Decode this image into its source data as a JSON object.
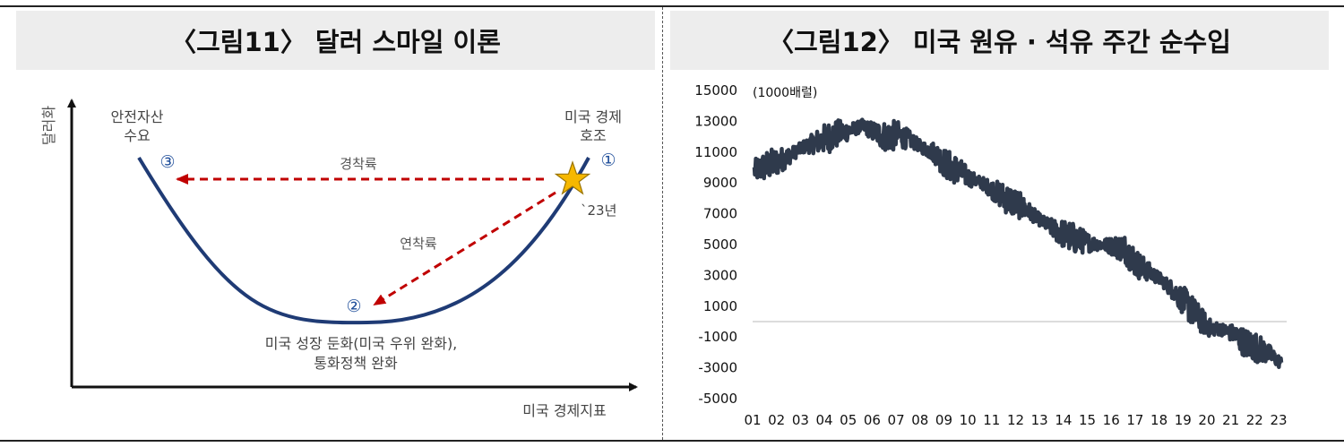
{
  "figure11": {
    "title": "〈그림11〉 달러 스마일 이론",
    "y_axis_label": "달러화",
    "x_axis_label": "미국 경제지표",
    "points": {
      "safe_haven": {
        "num": "③",
        "label_line1": "안전자산",
        "label_line2": "수요"
      },
      "slowdown": {
        "num": "②",
        "label_line1": "미국 성장 둔화(미국 우위 완화),",
        "label_line2": "통화정책 완화"
      },
      "boom": {
        "num": "①",
        "label_line1": "미국 경제",
        "label_line2": "호조"
      }
    },
    "arrow_hard": "경착륙",
    "arrow_soft": "연착륙",
    "year_marker": "`23년"
  },
  "figure12": {
    "title": "〈그림12〉 미국 원유 · 석유 주간 순수입",
    "unit": "(1000배럴)"
  },
  "chart_data": {
    "type": "line",
    "title": "〈그림12〉 미국 원유 · 석유 주간 순수입",
    "ylabel": "(1000배럴)",
    "ylim": [
      -5000,
      15000
    ],
    "yticks": [
      15000,
      13000,
      11000,
      9000,
      7000,
      5000,
      3000,
      1000,
      -1000,
      -3000,
      -5000
    ],
    "xticks": [
      "01",
      "02",
      "03",
      "04",
      "05",
      "06",
      "07",
      "08",
      "09",
      "10",
      "11",
      "12",
      "13",
      "14",
      "15",
      "16",
      "17",
      "18",
      "19",
      "20",
      "21",
      "22",
      "23"
    ],
    "series": [
      {
        "color": "#2f3a4c",
        "x": [
          2001.0,
          2001.5,
          2002.0,
          2002.5,
          2003.0,
          2003.5,
          2004.0,
          2004.5,
          2005.0,
          2005.5,
          2006.0,
          2006.5,
          2007.0,
          2007.5,
          2008.0,
          2008.5,
          2009.0,
          2009.5,
          2010.0,
          2010.5,
          2011.0,
          2011.5,
          2012.0,
          2012.5,
          2013.0,
          2013.5,
          2014.0,
          2014.5,
          2015.0,
          2015.5,
          2016.0,
          2016.5,
          2017.0,
          2017.5,
          2018.0,
          2018.5,
          2019.0,
          2019.5,
          2020.0,
          2020.5,
          2021.0,
          2021.5,
          2022.0,
          2022.5,
          2023.0
        ],
        "y": [
          9800,
          10100,
          10400,
          10800,
          11300,
          11600,
          11900,
          12200,
          12400,
          12700,
          12300,
          12000,
          12100,
          11800,
          11300,
          11000,
          10200,
          9800,
          9300,
          9000,
          8500,
          8000,
          7600,
          7100,
          6500,
          6000,
          5600,
          5300,
          5100,
          5000,
          4900,
          4700,
          3700,
          3200,
          2700,
          2000,
          1200,
          300,
          -400,
          -500,
          -800,
          -1400,
          -1700,
          -2100,
          -2700
        ]
      }
    ]
  }
}
